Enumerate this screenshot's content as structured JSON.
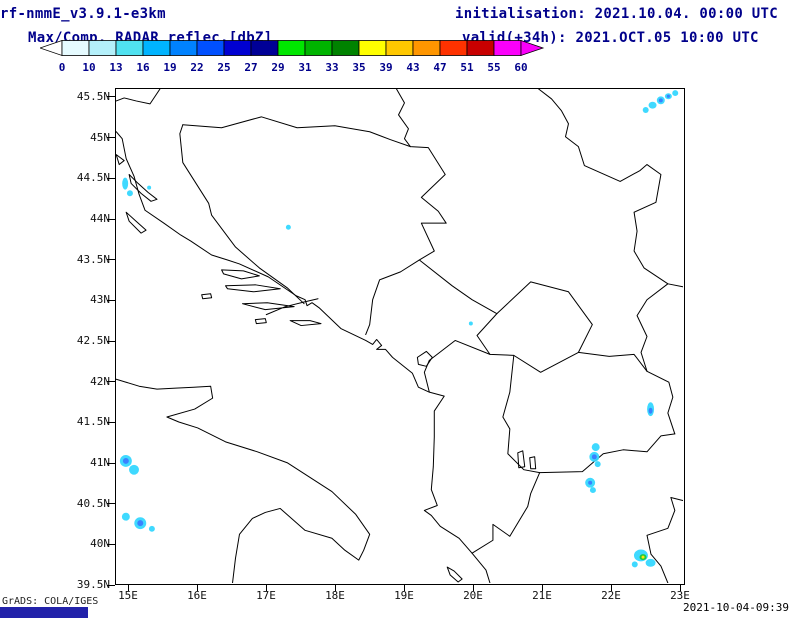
{
  "header": {
    "model_title": "rf-nmmE_v3.9.1-e3km",
    "field_title": "Max/Comp. RADAR reflec.[dbZ]",
    "init_label": "initialisation: 2021.10.04. 00:00 UTC",
    "valid_label": "valid(+34h): 2021.OCT.05 10:00 UTC"
  },
  "colorbar": {
    "tick_labels": [
      "0",
      "10",
      "13",
      "16",
      "19",
      "22",
      "25",
      "27",
      "29",
      "31",
      "33",
      "35",
      "39",
      "43",
      "47",
      "51",
      "55",
      "60"
    ],
    "segment_colors": [
      "#e6fbff",
      "#b4f0fa",
      "#50e1f0",
      "#00b4ff",
      "#0082ff",
      "#0050ff",
      "#0000d2",
      "#000096",
      "#00e600",
      "#00b400",
      "#008200",
      "#ffff00",
      "#ffc800",
      "#ff9600",
      "#ff3200",
      "#c80000",
      "#fa00fa"
    ],
    "left_arrow_color": "#ffffff",
    "right_arrow_color": "#fa00fa"
  },
  "axes": {
    "lat_labels": [
      "45.5N",
      "45N",
      "44.5N",
      "44N",
      "43.5N",
      "43N",
      "42.5N",
      "42N",
      "41.5N",
      "41N",
      "40.5N",
      "40N",
      "39.5N"
    ],
    "lon_labels": [
      "15E",
      "16E",
      "17E",
      "18E",
      "19E",
      "20E",
      "21E",
      "22E",
      "23E"
    ]
  },
  "footer": {
    "credit": "GrADS: COLA/IGES",
    "timestamp": "2021-10-04-09:39"
  },
  "chart_data": {
    "type": "map-radar-reflectivity",
    "units": "dbZ",
    "scale_breaks": [
      0,
      10,
      13,
      16,
      19,
      22,
      25,
      27,
      29,
      31,
      33,
      35,
      39,
      43,
      47,
      51,
      55,
      60
    ],
    "region": {
      "lon_min": 14.81,
      "lon_max": 23.07,
      "lat_min": 39.5,
      "lat_max": 45.61
    },
    "echoes": [
      {
        "lon": 22.53,
        "lat": 45.35,
        "rx": 3,
        "ry": 3,
        "color": "#35d8ff"
      },
      {
        "lon": 22.63,
        "lat": 45.41,
        "rx": 4,
        "ry": 3.5,
        "color": "#35d8ff"
      },
      {
        "lon": 22.75,
        "lat": 45.47,
        "rx": 4,
        "ry": 4,
        "color": "#35d8ff"
      },
      {
        "lon": 22.86,
        "lat": 45.52,
        "rx": 3.5,
        "ry": 3,
        "color": "#35d8ff"
      },
      {
        "lon": 22.96,
        "lat": 45.56,
        "rx": 3,
        "ry": 3,
        "color": "#35d8ff"
      },
      {
        "lon": 22.75,
        "lat": 45.47,
        "rx": 2,
        "ry": 2,
        "color": "#2f7bff"
      },
      {
        "lon": 22.86,
        "lat": 45.52,
        "rx": 1.6,
        "ry": 1.6,
        "color": "#2f7bff"
      },
      {
        "lon": 14.94,
        "lat": 44.44,
        "rx": 3,
        "ry": 6,
        "color": "#35d8ff"
      },
      {
        "lon": 15.01,
        "lat": 44.32,
        "rx": 3,
        "ry": 3,
        "color": "#35d8ff"
      },
      {
        "lon": 15.29,
        "lat": 44.39,
        "rx": 2,
        "ry": 2,
        "color": "#35d8ff"
      },
      {
        "lon": 17.32,
        "lat": 43.9,
        "rx": 2.5,
        "ry": 2.5,
        "color": "#35d8ff"
      },
      {
        "lon": 19.98,
        "lat": 42.71,
        "rx": 2,
        "ry": 2,
        "color": "#35d8ff"
      },
      {
        "lon": 14.95,
        "lat": 41.01,
        "rx": 6,
        "ry": 6,
        "color": "#35d8ff"
      },
      {
        "lon": 15.07,
        "lat": 40.9,
        "rx": 5,
        "ry": 5,
        "color": "#35d8ff"
      },
      {
        "lon": 14.95,
        "lat": 41.01,
        "rx": 3,
        "ry": 3,
        "color": "#2f7bff"
      },
      {
        "lon": 14.95,
        "lat": 40.32,
        "rx": 4,
        "ry": 4,
        "color": "#35d8ff"
      },
      {
        "lon": 15.16,
        "lat": 40.24,
        "rx": 6,
        "ry": 6,
        "color": "#35d8ff"
      },
      {
        "lon": 15.33,
        "lat": 40.17,
        "rx": 3,
        "ry": 3,
        "color": "#35d8ff"
      },
      {
        "lon": 15.16,
        "lat": 40.24,
        "rx": 3,
        "ry": 3,
        "color": "#2f7bff"
      },
      {
        "lon": 22.6,
        "lat": 41.65,
        "rx": 3.5,
        "ry": 7,
        "color": "#35d8ff"
      },
      {
        "lon": 22.6,
        "lat": 41.63,
        "rx": 2,
        "ry": 3,
        "color": "#2f7bff"
      },
      {
        "lon": 21.8,
        "lat": 41.18,
        "rx": 4,
        "ry": 4,
        "color": "#35d8ff"
      },
      {
        "lon": 21.78,
        "lat": 41.06,
        "rx": 5,
        "ry": 5,
        "color": "#35d8ff"
      },
      {
        "lon": 21.83,
        "lat": 40.97,
        "rx": 3,
        "ry": 3,
        "color": "#35d8ff"
      },
      {
        "lon": 21.78,
        "lat": 41.06,
        "rx": 2.5,
        "ry": 2.5,
        "color": "#2f7bff"
      },
      {
        "lon": 21.72,
        "lat": 40.74,
        "rx": 5,
        "ry": 5,
        "color": "#35d8ff"
      },
      {
        "lon": 21.76,
        "lat": 40.65,
        "rx": 3,
        "ry": 3,
        "color": "#35d8ff"
      },
      {
        "lon": 21.72,
        "lat": 40.74,
        "rx": 2,
        "ry": 2,
        "color": "#2f7bff"
      },
      {
        "lon": 22.46,
        "lat": 39.84,
        "rx": 7,
        "ry": 6,
        "color": "#35d8ff"
      },
      {
        "lon": 22.6,
        "lat": 39.75,
        "rx": 5,
        "ry": 4,
        "color": "#35d8ff"
      },
      {
        "lon": 22.37,
        "lat": 39.73,
        "rx": 3,
        "ry": 3,
        "color": "#35d8ff"
      },
      {
        "lon": 22.49,
        "lat": 39.82,
        "rx": 3.5,
        "ry": 3,
        "color": "#12c832"
      },
      {
        "lon": 22.49,
        "lat": 39.82,
        "rx": 1.5,
        "ry": 1.5,
        "color": "#ffe100"
      }
    ]
  }
}
